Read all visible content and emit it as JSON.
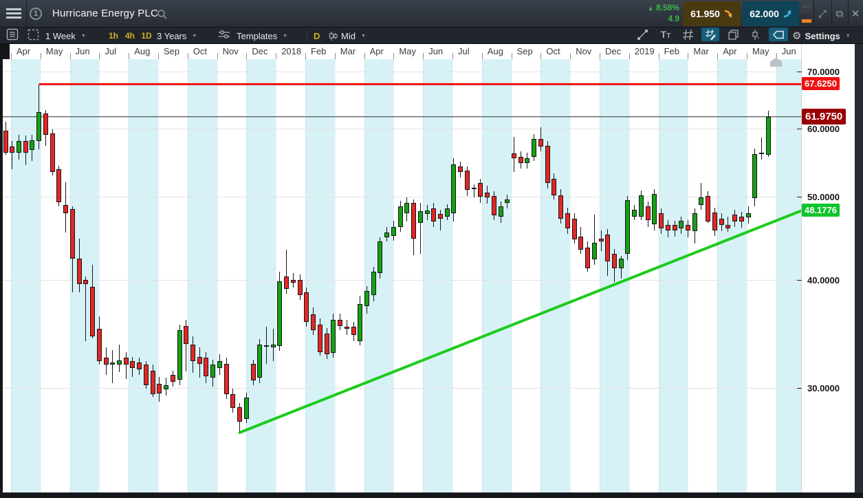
{
  "title_bar": {
    "symbol": "Hurricane Energy PLC",
    "position_indicator": "1",
    "change_percent": "8.58%",
    "change_value": "4.9",
    "sell_price": "61.950",
    "buy_price": "62.000"
  },
  "toolbar": {
    "period": "1 Week",
    "timeframes": [
      "1h",
      "4h",
      "1D"
    ],
    "range": "3 Years",
    "templates": "Templates",
    "candle_mode": "D",
    "price_source": "Mid",
    "settings": "Settings"
  },
  "icons": {
    "triangle_up": "▲",
    "caret_down": "▼",
    "gear": "⚙",
    "close": "✕",
    "expand": "⤢",
    "popout": "⧉"
  },
  "colors": {
    "up_candle": "#15a115",
    "down_candle": "#e32726",
    "resistance_line": "#ee1111",
    "trend_line": "#1ccc1c",
    "current_price_bg": "#9b0000",
    "resistance_badge_bg": "#ee1111",
    "trend_badge_bg": "#0fc52c",
    "sell_bg": "#4a3a12",
    "buy_bg": "#0e4456",
    "change_green": "#3db54a",
    "stripe_cyan": "#d7f2f7"
  },
  "chart_data": {
    "type": "candlestick",
    "title": "Hurricane Energy PLC",
    "interval": "1 Week",
    "range": "3 Years",
    "y_scale": "log",
    "x_labels": [
      "Apr",
      "May",
      "Jun",
      "Jul",
      "Aug",
      "Sep",
      "Oct",
      "Nov",
      "Dec",
      "2018",
      "Feb",
      "Mar",
      "Apr",
      "May",
      "Jun",
      "Jul",
      "Aug",
      "Sep",
      "Oct",
      "Nov",
      "Dec",
      "2019",
      "Feb",
      "Mar",
      "Apr",
      "May",
      "Jun"
    ],
    "y_ticks": [
      "70.0000",
      "60.0000",
      "50.0000",
      "40.0000",
      "30.0000"
    ],
    "y_tick_values": [
      70,
      60,
      50,
      40,
      30
    ],
    "candles_ohlc": [
      [
        59.7,
        61.1,
        56.0,
        56.3
      ],
      [
        57.2,
        58.1,
        53.8,
        56.3
      ],
      [
        56.3,
        59.1,
        55.3,
        58.1
      ],
      [
        58.1,
        58.9,
        54.4,
        56.3
      ],
      [
        56.7,
        59.0,
        55.0,
        58.2
      ],
      [
        58.1,
        67.6,
        56.8,
        62.75
      ],
      [
        62.5,
        63.1,
        57.3,
        59.0
      ],
      [
        59.3,
        59.9,
        53.0,
        53.5
      ],
      [
        53.9,
        54.4,
        48.75,
        49.3
      ],
      [
        48.9,
        52.0,
        45.5,
        47.9
      ],
      [
        48.4,
        48.75,
        38.7,
        42.4
      ],
      [
        42.4,
        44.7,
        38.7,
        39.6
      ],
      [
        40.0,
        40.4,
        33.95,
        39.6
      ],
      [
        39.3,
        41.7,
        34.2,
        34.4
      ],
      [
        35.1,
        36.3,
        31.9,
        32.2
      ],
      [
        32.5,
        33.4,
        31.05,
        31.9
      ],
      [
        31.9,
        33.2,
        30.35,
        32.1
      ],
      [
        31.9,
        33.7,
        31.3,
        32.3
      ],
      [
        32.5,
        33.0,
        30.7,
        31.9
      ],
      [
        32.2,
        32.6,
        30.9,
        31.6
      ],
      [
        32.1,
        32.5,
        31.05,
        31.5
      ],
      [
        31.9,
        32.2,
        29.9,
        30.2
      ],
      [
        31.4,
        31.9,
        29.25,
        29.5
      ],
      [
        30.3,
        30.9,
        28.9,
        29.55
      ],
      [
        29.85,
        30.8,
        29.4,
        30.2
      ],
      [
        31.05,
        31.4,
        30.1,
        30.5
      ],
      [
        30.65,
        35.5,
        30.2,
        35.0
      ],
      [
        35.4,
        36.0,
        31.3,
        33.7
      ],
      [
        33.7,
        34.4,
        31.2,
        32.2
      ],
      [
        32.6,
        33.4,
        30.8,
        32.0
      ],
      [
        32.5,
        33.0,
        30.35,
        30.9
      ],
      [
        30.8,
        32.35,
        30.1,
        31.9
      ],
      [
        31.6,
        32.8,
        31.05,
        32.2
      ],
      [
        32.0,
        32.5,
        29.1,
        29.5
      ],
      [
        29.5,
        29.9,
        28.05,
        28.4
      ],
      [
        28.45,
        28.8,
        26.6,
        27.4
      ],
      [
        27.6,
        29.6,
        27.3,
        29.2
      ],
      [
        32.0,
        32.35,
        30.2,
        30.6
      ],
      [
        30.8,
        34.2,
        30.35,
        33.7
      ],
      [
        33.5,
        35.3,
        32.0,
        33.6
      ],
      [
        33.4,
        35.15,
        32.2,
        33.7
      ],
      [
        33.55,
        40.9,
        33.1,
        39.9
      ],
      [
        40.4,
        43.4,
        38.55,
        39.1
      ],
      [
        40.0,
        40.75,
        39.25,
        39.75
      ],
      [
        40.05,
        40.6,
        37.95,
        38.4
      ],
      [
        38.7,
        39.25,
        35.3,
        35.75
      ],
      [
        36.5,
        37.2,
        34.55,
        35.0
      ],
      [
        35.55,
        36.1,
        32.7,
        33.0
      ],
      [
        34.7,
        35.2,
        32.4,
        32.8
      ],
      [
        32.9,
        36.6,
        32.5,
        36.0
      ],
      [
        36.0,
        36.6,
        35.0,
        35.4
      ],
      [
        35.3,
        36.0,
        34.55,
        35.1
      ],
      [
        35.3,
        35.8,
        34.0,
        34.55
      ],
      [
        34.0,
        38.4,
        33.6,
        37.55
      ],
      [
        37.3,
        39.4,
        36.6,
        38.85
      ],
      [
        38.4,
        41.45,
        37.8,
        40.9
      ],
      [
        40.75,
        44.9,
        40.2,
        44.35
      ],
      [
        44.9,
        46.1,
        44.35,
        45.5
      ],
      [
        45.05,
        46.95,
        44.5,
        46.1
      ],
      [
        46.1,
        49.5,
        45.55,
        48.75
      ],
      [
        47.9,
        49.9,
        46.85,
        49.2
      ],
      [
        49.2,
        49.7,
        42.8,
        44.7
      ],
      [
        46.6,
        49.2,
        42.9,
        48.1
      ],
      [
        47.75,
        48.95,
        47.0,
        48.2
      ],
      [
        48.45,
        49.2,
        46.1,
        46.8
      ],
      [
        47.75,
        48.3,
        45.7,
        47.2
      ],
      [
        47.45,
        49.0,
        47.0,
        48.45
      ],
      [
        47.9,
        55.5,
        46.85,
        54.6
      ],
      [
        54.3,
        55.0,
        52.7,
        53.5
      ],
      [
        53.7,
        54.3,
        50.1,
        51.0
      ],
      [
        51.0,
        51.75,
        49.9,
        51.2
      ],
      [
        51.9,
        52.5,
        49.2,
        50.0
      ],
      [
        50.6,
        51.5,
        49.1,
        49.9
      ],
      [
        50.1,
        50.8,
        47.0,
        47.6
      ],
      [
        47.4,
        49.4,
        46.6,
        48.75
      ],
      [
        49.2,
        50.3,
        48.5,
        49.7
      ],
      [
        56.2,
        58.7,
        53.5,
        55.5
      ],
      [
        55.7,
        56.5,
        53.95,
        54.7
      ],
      [
        54.7,
        56.3,
        53.9,
        55.5
      ],
      [
        55.7,
        59.2,
        55.0,
        58.4
      ],
      [
        58.4,
        60.3,
        56.5,
        57.2
      ],
      [
        57.3,
        58.1,
        51.1,
        51.9
      ],
      [
        52.5,
        53.3,
        49.7,
        50.25
      ],
      [
        50.25,
        51.1,
        46.6,
        47.2
      ],
      [
        47.9,
        48.6,
        45.3,
        46.0
      ],
      [
        47.2,
        47.9,
        44.1,
        44.65
      ],
      [
        44.95,
        46.1,
        42.9,
        43.4
      ],
      [
        43.65,
        44.35,
        40.9,
        41.3
      ],
      [
        42.3,
        47.7,
        41.7,
        44.2
      ],
      [
        44.7,
        45.7,
        43.25,
        44.4
      ],
      [
        45.2,
        45.85,
        40.5,
        42.1
      ],
      [
        42.9,
        43.5,
        39.8,
        41.3
      ],
      [
        41.3,
        42.7,
        40.2,
        42.4
      ],
      [
        42.9,
        50.1,
        42.2,
        49.55
      ],
      [
        47.45,
        48.95,
        47.0,
        48.3
      ],
      [
        47.4,
        50.9,
        46.95,
        50.25
      ],
      [
        48.75,
        49.4,
        46.1,
        47.0
      ],
      [
        46.5,
        51.1,
        45.7,
        50.4
      ],
      [
        47.9,
        48.45,
        45.3,
        46.0
      ],
      [
        46.4,
        47.0,
        44.9,
        45.7
      ],
      [
        46.4,
        46.95,
        45.0,
        45.7
      ],
      [
        46.0,
        47.4,
        45.3,
        46.95
      ],
      [
        46.4,
        47.0,
        44.9,
        45.7
      ],
      [
        45.6,
        48.45,
        44.1,
        47.9
      ],
      [
        48.9,
        51.9,
        48.3,
        49.9
      ],
      [
        50.1,
        50.8,
        46.6,
        46.85
      ],
      [
        47.95,
        48.6,
        45.0,
        45.7
      ],
      [
        47.2,
        47.9,
        45.65,
        46.4
      ],
      [
        46.4,
        47.4,
        45.5,
        46.0
      ],
      [
        47.7,
        48.3,
        46.1,
        46.8
      ],
      [
        47.4,
        48.0,
        46.0,
        46.8
      ],
      [
        47.3,
        48.75,
        46.6,
        47.9
      ],
      [
        49.85,
        56.9,
        48.75,
        56.1
      ],
      [
        56.3,
        58.6,
        55.25,
        56.1
      ],
      [
        56.0,
        63.0,
        55.7,
        61.975
      ]
    ],
    "annotations": {
      "resistance_line": {
        "price": 67.625,
        "label": "67.6250",
        "color": "#ee1111",
        "start_candle_index": 5
      },
      "trend_line": {
        "start_candle_index": 35,
        "start_price": 26.6,
        "end_price": 48.1776,
        "label": "48.1776",
        "color": "#1ccc1c"
      },
      "current_price": {
        "price": 61.975,
        "label": "61.9750",
        "color": "#9b0000"
      }
    }
  }
}
